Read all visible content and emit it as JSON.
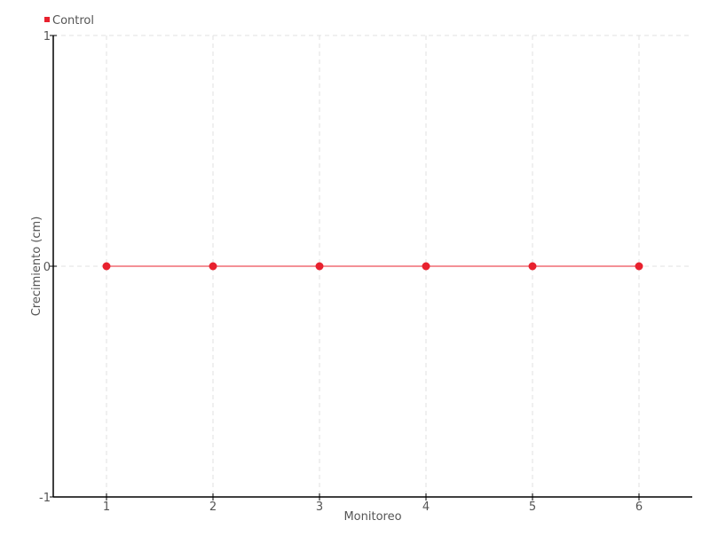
{
  "chart_data": {
    "type": "line",
    "title": "",
    "xlabel": "Monitoreo",
    "ylabel": "Crecimiento (cm)",
    "x": [
      1,
      2,
      3,
      4,
      5,
      6
    ],
    "xticks": [
      "1",
      "2",
      "3",
      "4",
      "5",
      "6"
    ],
    "yticks": [
      "-1",
      "0",
      "1"
    ],
    "xlim": [
      0.5,
      6.5
    ],
    "ylim": [
      -1,
      1
    ],
    "grid": true,
    "legend_position": "top-left",
    "series": [
      {
        "name": "Control",
        "values": [
          0,
          0,
          0,
          0,
          0,
          0
        ],
        "color": "#e8212e"
      }
    ]
  }
}
